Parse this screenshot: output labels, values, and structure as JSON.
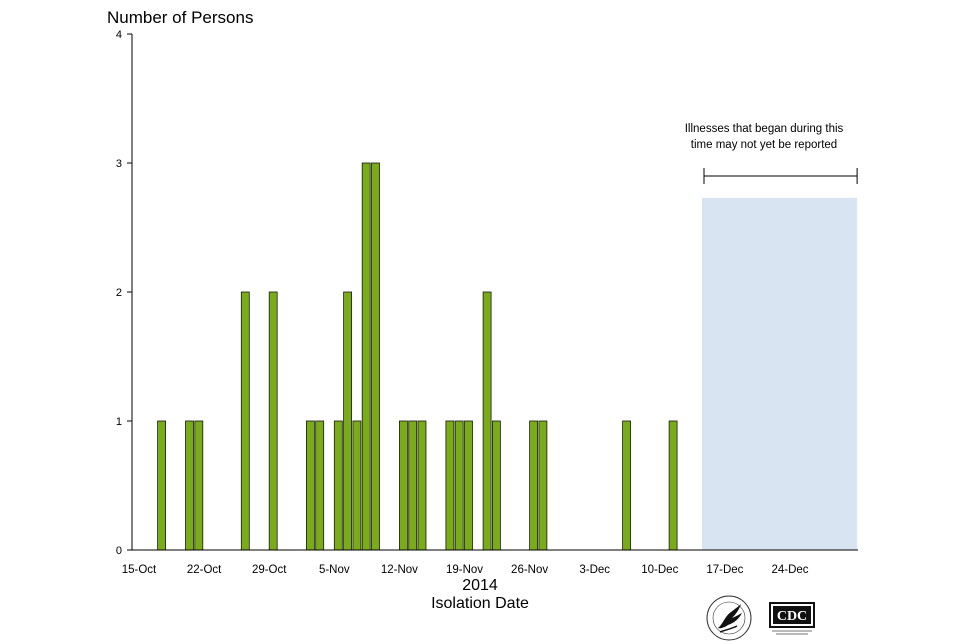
{
  "chart_data": {
    "type": "bar",
    "title": "",
    "ylabel": "Number of Persons",
    "xlabel": "Isolation Date",
    "year_label": "2014",
    "ylim": [
      0,
      4
    ],
    "yticks": [
      "0",
      "1",
      "2",
      "3",
      "4"
    ],
    "xlim": [
      "2014-10-15",
      "2014-12-31"
    ],
    "xtick_labels": [
      "15-Oct",
      "22-Oct",
      "29-Oct",
      "5-Nov",
      "12-Nov",
      "19-Nov",
      "26-Nov",
      "3-Dec",
      "10-Dec",
      "17-Dec",
      "24-Dec"
    ],
    "xtick_dates": [
      "2014-10-15",
      "2014-10-22",
      "2014-10-29",
      "2014-11-05",
      "2014-11-12",
      "2014-11-19",
      "2014-11-26",
      "2014-12-03",
      "2014-12-10",
      "2014-12-17",
      "2014-12-24"
    ],
    "bars": [
      {
        "date": "2014-10-17",
        "value": 1
      },
      {
        "date": "2014-10-20",
        "value": 1
      },
      {
        "date": "2014-10-21",
        "value": 1
      },
      {
        "date": "2014-10-26",
        "value": 2
      },
      {
        "date": "2014-10-29",
        "value": 2
      },
      {
        "date": "2014-11-02",
        "value": 1
      },
      {
        "date": "2014-11-03",
        "value": 1
      },
      {
        "date": "2014-11-05",
        "value": 1
      },
      {
        "date": "2014-11-06",
        "value": 2
      },
      {
        "date": "2014-11-07",
        "value": 1
      },
      {
        "date": "2014-11-08",
        "value": 3
      },
      {
        "date": "2014-11-09",
        "value": 3
      },
      {
        "date": "2014-11-12",
        "value": 1
      },
      {
        "date": "2014-11-13",
        "value": 1
      },
      {
        "date": "2014-11-14",
        "value": 1
      },
      {
        "date": "2014-11-17",
        "value": 1
      },
      {
        "date": "2014-11-18",
        "value": 1
      },
      {
        "date": "2014-11-19",
        "value": 1
      },
      {
        "date": "2014-11-21",
        "value": 2
      },
      {
        "date": "2014-11-22",
        "value": 1
      },
      {
        "date": "2014-11-26",
        "value": 1
      },
      {
        "date": "2014-11-27",
        "value": 1
      },
      {
        "date": "2014-12-06",
        "value": 1
      },
      {
        "date": "2014-12-11",
        "value": 1
      }
    ],
    "bar_color": "#7aab19",
    "bar_edge_color": "#1a1a1a",
    "shaded_region": {
      "start": "2014-12-14",
      "end": "2014-12-31",
      "color": "#d8e4f2",
      "top_value": 2.73,
      "annotation_line1": "Illnesses that began during this",
      "annotation_line2": "time may not yet be reported"
    },
    "grid": false,
    "legend": "none"
  },
  "logos": {
    "hhs": "hhs-seal-icon",
    "cdc_text": "CDC"
  }
}
